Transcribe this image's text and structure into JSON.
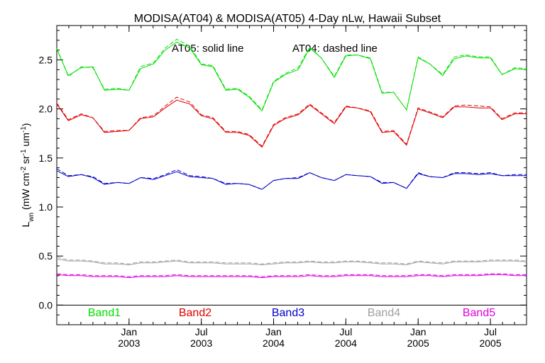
{
  "chart_data": {
    "type": "line",
    "title": "MODISA(AT04) & MODISA(AT05) 4-Day nLw, Hawaii Subset",
    "annotation_solid": "AT05: solid line",
    "annotation_dashed": "AT04: dashed line",
    "ylabel": "L_wn (mW cm^-2 sr^-1 um^-1)",
    "ylabel_main": "L",
    "ylabel_sub": "wn",
    "ylabel_units": " (mW cm",
    "ylabel_exp1": "-2",
    "ylabel_mid": " sr",
    "ylabel_exp2": "-1",
    "ylabel_mid2": " um",
    "ylabel_exp3": "-1",
    "ylabel_end": ")",
    "xlabel": "",
    "ylim": [
      -0.2,
      2.85
    ],
    "xlim": [
      2002.5,
      2005.75
    ],
    "grid": false,
    "y_ticks": [
      0.0,
      0.5,
      1.0,
      1.5,
      2.0,
      2.5
    ],
    "y_tick_labels": [
      "0.0",
      "0.5",
      "1.0",
      "1.5",
      "2.0",
      "2.5"
    ],
    "x_tick_labels": [
      {
        "x": 2003.0,
        "month": "Jan",
        "year": "2003"
      },
      {
        "x": 2003.5,
        "month": "Jul",
        "year": "2003"
      },
      {
        "x": 2004.0,
        "month": "Jan",
        "year": "2004"
      },
      {
        "x": 2004.5,
        "month": "Jul",
        "year": "2004"
      },
      {
        "x": 2005.0,
        "month": "Jan",
        "year": "2005"
      },
      {
        "x": 2005.5,
        "month": "Jul",
        "year": "2005"
      }
    ],
    "x": [
      2002.5,
      2002.58,
      2002.67,
      2002.75,
      2002.83,
      2002.92,
      2003.0,
      2003.08,
      2003.17,
      2003.25,
      2003.33,
      2003.42,
      2003.5,
      2003.58,
      2003.67,
      2003.75,
      2003.83,
      2003.92,
      2004.0,
      2004.08,
      2004.17,
      2004.25,
      2004.33,
      2004.42,
      2004.5,
      2004.58,
      2004.67,
      2004.75,
      2004.83,
      2004.92,
      2005.0,
      2005.08,
      2005.17,
      2005.25,
      2005.33,
      2005.42,
      2005.5,
      2005.58,
      2005.67,
      2005.75
    ],
    "series": [
      {
        "name": "Band1",
        "color": "#00e000",
        "at05": [
          2.61,
          2.34,
          2.42,
          2.43,
          2.19,
          2.2,
          2.19,
          2.41,
          2.46,
          2.6,
          2.68,
          2.62,
          2.45,
          2.43,
          2.19,
          2.2,
          2.12,
          1.98,
          2.27,
          2.35,
          2.4,
          2.62,
          2.52,
          2.32,
          2.54,
          2.55,
          2.51,
          2.16,
          2.17,
          1.99,
          2.52,
          2.46,
          2.34,
          2.51,
          2.54,
          2.52,
          2.52,
          2.35,
          2.41,
          2.4
        ],
        "at04": [
          2.62,
          2.33,
          2.43,
          2.42,
          2.2,
          2.21,
          2.19,
          2.43,
          2.47,
          2.62,
          2.71,
          2.64,
          2.46,
          2.44,
          2.2,
          2.21,
          2.13,
          1.99,
          2.28,
          2.36,
          2.42,
          2.63,
          2.52,
          2.33,
          2.55,
          2.55,
          2.52,
          2.17,
          2.17,
          1.99,
          2.53,
          2.46,
          2.35,
          2.53,
          2.55,
          2.53,
          2.53,
          2.35,
          2.42,
          2.41
        ]
      },
      {
        "name": "Band2",
        "color": "#e00000",
        "at05": [
          2.05,
          1.88,
          1.94,
          1.91,
          1.76,
          1.77,
          1.78,
          1.9,
          1.92,
          2.01,
          2.09,
          2.05,
          1.93,
          1.9,
          1.76,
          1.76,
          1.73,
          1.61,
          1.83,
          1.9,
          1.94,
          2.04,
          1.95,
          1.85,
          2.02,
          2.01,
          1.97,
          1.76,
          1.77,
          1.63,
          2.0,
          1.96,
          1.91,
          2.02,
          2.02,
          2.01,
          2.01,
          1.89,
          1.95,
          1.95
        ],
        "at04": [
          2.06,
          1.89,
          1.95,
          1.91,
          1.77,
          1.78,
          1.78,
          1.91,
          1.93,
          2.03,
          2.12,
          2.07,
          1.94,
          1.91,
          1.77,
          1.77,
          1.74,
          1.62,
          1.84,
          1.91,
          1.95,
          2.05,
          1.96,
          1.86,
          2.03,
          2.01,
          1.98,
          1.77,
          1.78,
          1.64,
          2.01,
          1.97,
          1.92,
          2.03,
          2.04,
          2.03,
          2.02,
          1.9,
          1.96,
          1.96
        ]
      },
      {
        "name": "Band3",
        "color": "#0000c8",
        "at05": [
          1.37,
          1.31,
          1.33,
          1.3,
          1.23,
          1.25,
          1.24,
          1.3,
          1.28,
          1.32,
          1.36,
          1.31,
          1.3,
          1.29,
          1.23,
          1.24,
          1.23,
          1.18,
          1.27,
          1.29,
          1.29,
          1.35,
          1.3,
          1.27,
          1.33,
          1.32,
          1.31,
          1.24,
          1.25,
          1.19,
          1.34,
          1.31,
          1.3,
          1.34,
          1.34,
          1.33,
          1.34,
          1.32,
          1.32,
          1.32
        ],
        "at04": [
          1.39,
          1.32,
          1.33,
          1.31,
          1.24,
          1.25,
          1.24,
          1.3,
          1.29,
          1.33,
          1.38,
          1.32,
          1.31,
          1.29,
          1.24,
          1.24,
          1.23,
          1.18,
          1.27,
          1.29,
          1.3,
          1.35,
          1.3,
          1.27,
          1.33,
          1.32,
          1.31,
          1.25,
          1.25,
          1.19,
          1.35,
          1.31,
          1.3,
          1.35,
          1.35,
          1.34,
          1.35,
          1.32,
          1.33,
          1.33
        ]
      },
      {
        "name": "Band4",
        "color": "#a0a0a0",
        "at05": [
          0.47,
          0.45,
          0.45,
          0.44,
          0.42,
          0.42,
          0.41,
          0.43,
          0.43,
          0.44,
          0.45,
          0.43,
          0.43,
          0.43,
          0.42,
          0.42,
          0.42,
          0.41,
          0.42,
          0.43,
          0.43,
          0.44,
          0.43,
          0.43,
          0.44,
          0.44,
          0.43,
          0.42,
          0.42,
          0.41,
          0.44,
          0.43,
          0.42,
          0.44,
          0.44,
          0.44,
          0.45,
          0.45,
          0.45,
          0.44
        ],
        "at04": [
          0.49,
          0.46,
          0.46,
          0.45,
          0.43,
          0.43,
          0.42,
          0.44,
          0.44,
          0.45,
          0.46,
          0.44,
          0.44,
          0.44,
          0.43,
          0.43,
          0.43,
          0.42,
          0.43,
          0.44,
          0.44,
          0.45,
          0.44,
          0.44,
          0.45,
          0.45,
          0.44,
          0.43,
          0.43,
          0.42,
          0.45,
          0.44,
          0.43,
          0.45,
          0.45,
          0.45,
          0.46,
          0.46,
          0.46,
          0.45
        ]
      },
      {
        "name": "Band5",
        "color": "#e000e0",
        "at05": [
          0.31,
          0.3,
          0.3,
          0.29,
          0.29,
          0.29,
          0.28,
          0.29,
          0.29,
          0.29,
          0.3,
          0.29,
          0.29,
          0.29,
          0.29,
          0.29,
          0.29,
          0.28,
          0.29,
          0.29,
          0.29,
          0.3,
          0.29,
          0.29,
          0.3,
          0.3,
          0.3,
          0.29,
          0.29,
          0.29,
          0.3,
          0.3,
          0.29,
          0.3,
          0.3,
          0.3,
          0.31,
          0.31,
          0.3,
          0.3
        ],
        "at04": [
          0.32,
          0.31,
          0.31,
          0.3,
          0.3,
          0.3,
          0.29,
          0.3,
          0.3,
          0.3,
          0.31,
          0.3,
          0.3,
          0.3,
          0.3,
          0.3,
          0.3,
          0.29,
          0.3,
          0.3,
          0.3,
          0.31,
          0.3,
          0.3,
          0.31,
          0.31,
          0.31,
          0.3,
          0.3,
          0.3,
          0.31,
          0.31,
          0.3,
          0.31,
          0.31,
          0.31,
          0.32,
          0.32,
          0.31,
          0.31
        ]
      }
    ]
  }
}
